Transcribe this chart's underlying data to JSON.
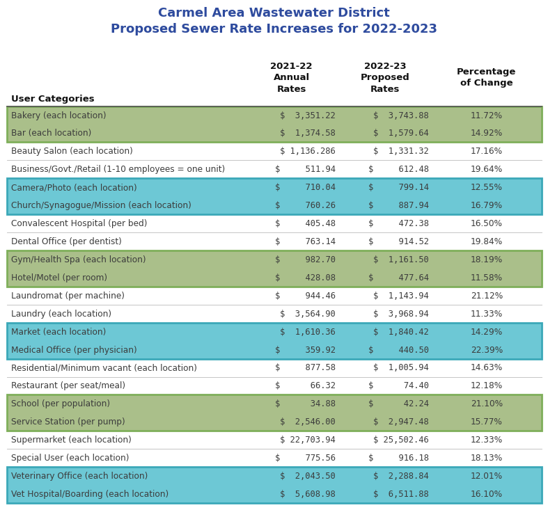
{
  "title_line1": "Carmel Area Wastewater District",
  "title_line2": "Proposed Sewer Rate Increases for 2022-2023",
  "title_color": "#2E4B9E",
  "col_headers": [
    "User Categories",
    "2021-22\nAnnual\nRates",
    "2022-23\nProposed\nRates",
    "Percentage\nof Change"
  ],
  "rows": [
    {
      "category": "Bakery (each location)",
      "rate_2122": "$  3,351.22",
      "rate_2223": "$  3,743.88",
      "pct": "11.72%",
      "bg": "green"
    },
    {
      "category": "Bar (each location)",
      "rate_2122": "$  1,374.58",
      "rate_2223": "$  1,579.64",
      "pct": "14.92%",
      "bg": "green"
    },
    {
      "category": "Beauty Salon (each location)",
      "rate_2122": "$ 1,136.286",
      "rate_2223": "$  1,331.32",
      "pct": "17.16%",
      "bg": "white"
    },
    {
      "category": "Business/Govt./Retail (1-10 employees = one unit)",
      "rate_2122": "$     511.94",
      "rate_2223": "$     612.48",
      "pct": "19.64%",
      "bg": "white"
    },
    {
      "category": "Camera/Photo (each location)",
      "rate_2122": "$     710.04",
      "rate_2223": "$     799.14",
      "pct": "12.55%",
      "bg": "blue"
    },
    {
      "category": "Church/Synagogue/Mission (each location)",
      "rate_2122": "$     760.26",
      "rate_2223": "$     887.94",
      "pct": "16.79%",
      "bg": "blue"
    },
    {
      "category": "Convalescent Hospital (per bed)",
      "rate_2122": "$     405.48",
      "rate_2223": "$     472.38",
      "pct": "16.50%",
      "bg": "white"
    },
    {
      "category": "Dental Office (per dentist)",
      "rate_2122": "$     763.14",
      "rate_2223": "$     914.52",
      "pct": "19.84%",
      "bg": "white"
    },
    {
      "category": "Gym/Health Spa (each location)",
      "rate_2122": "$     982.70",
      "rate_2223": "$  1,161.50",
      "pct": "18.19%",
      "bg": "green"
    },
    {
      "category": "Hotel/Motel (per room)",
      "rate_2122": "$     428.08",
      "rate_2223": "$     477.64",
      "pct": "11.58%",
      "bg": "green"
    },
    {
      "category": "Laundromat (per machine)",
      "rate_2122": "$     944.46",
      "rate_2223": "$  1,143.94",
      "pct": "21.12%",
      "bg": "white"
    },
    {
      "category": "Laundry (each location)",
      "rate_2122": "$  3,564.90",
      "rate_2223": "$  3,968.94",
      "pct": "11.33%",
      "bg": "white"
    },
    {
      "category": "Market (each location)",
      "rate_2122": "$  1,610.36",
      "rate_2223": "$  1,840.42",
      "pct": "14.29%",
      "bg": "blue"
    },
    {
      "category": "Medical Office (per physician)",
      "rate_2122": "$     359.92",
      "rate_2223": "$     440.50",
      "pct": "22.39%",
      "bg": "blue"
    },
    {
      "category": "Residential/Minimum vacant (each location)",
      "rate_2122": "$     877.58",
      "rate_2223": "$  1,005.94",
      "pct": "14.63%",
      "bg": "white"
    },
    {
      "category": "Restaurant (per seat/meal)",
      "rate_2122": "$      66.32",
      "rate_2223": "$      74.40",
      "pct": "12.18%",
      "bg": "white"
    },
    {
      "category": "School (per population)",
      "rate_2122": "$      34.88",
      "rate_2223": "$      42.24",
      "pct": "21.10%",
      "bg": "green"
    },
    {
      "category": "Service Station (per pump)",
      "rate_2122": "$  2,546.00",
      "rate_2223": "$  2,947.48",
      "pct": "15.77%",
      "bg": "green"
    },
    {
      "category": "Supermarket (each location)",
      "rate_2122": "$ 22,703.94",
      "rate_2223": "$ 25,502.46",
      "pct": "12.33%",
      "bg": "white"
    },
    {
      "category": "Special User (each location)",
      "rate_2122": "$     775.56",
      "rate_2223": "$     916.18",
      "pct": "18.13%",
      "bg": "white"
    },
    {
      "category": "Veterinary Office (each location)",
      "rate_2122": "$  2,043.50",
      "rate_2223": "$  2,288.84",
      "pct": "12.01%",
      "bg": "blue"
    },
    {
      "category": "Vet Hospital/Boarding (each location)",
      "rate_2122": "$  5,608.98",
      "rate_2223": "$  6,511.88",
      "pct": "16.10%",
      "bg": "blue"
    }
  ],
  "color_green": "#AABF8A",
  "color_blue": "#6DC8D5",
  "color_white": "#FFFFFF",
  "border_green": "#7FAF5A",
  "border_blue": "#3BA8B8",
  "text_color": "#3C3C3C",
  "fig_bg": "#FFFFFF"
}
